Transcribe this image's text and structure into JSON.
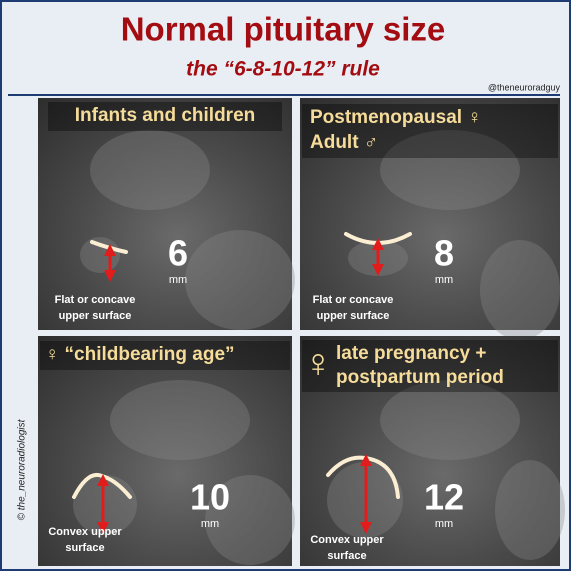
{
  "header": {
    "title": "Normal pituitary size",
    "subtitle": "the “6-8-10-12” rule",
    "handle": "@theneuroradguy"
  },
  "side_credit": "© the_neuroradiologist",
  "panels": [
    {
      "heading": [
        "Infants and children"
      ],
      "size": "6",
      "unit": "mm",
      "caption": [
        "Flat or concave",
        "upper surface"
      ]
    },
    {
      "heading": [
        "Postmenopausal ♀",
        "Adult ♂"
      ],
      "size": "8",
      "unit": "mm",
      "caption": [
        "Flat or concave",
        "upper surface"
      ]
    },
    {
      "heading": [
        "♀ “childbearing age”"
      ],
      "size": "10",
      "unit": "mm",
      "caption": [
        "Convex upper",
        "surface"
      ]
    },
    {
      "symbol": "♀",
      "heading": [
        "late pregnancy +",
        "postpartum period"
      ],
      "size": "12",
      "unit": "mm",
      "caption": [
        "Convex upper",
        "surface"
      ]
    }
  ]
}
